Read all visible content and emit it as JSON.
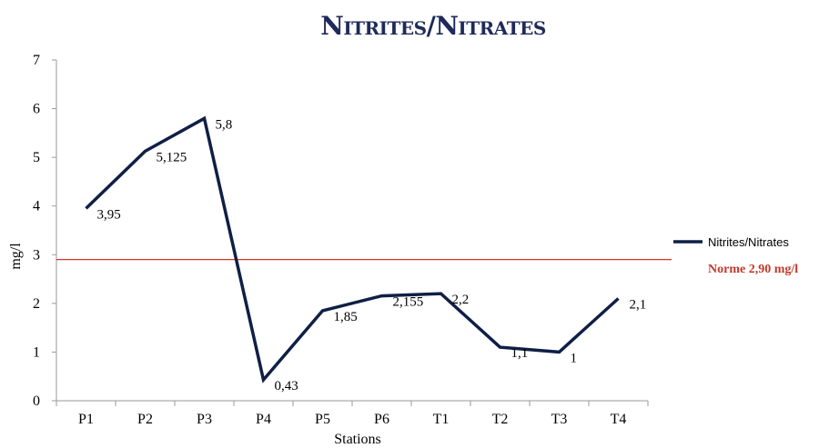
{
  "chart_data": {
    "type": "line",
    "title": "Nitrites/Nitrates",
    "xlabel": "Stations",
    "ylabel": "mg/l",
    "ylim": [
      0,
      7
    ],
    "yticks": [
      "0",
      "1",
      "2",
      "3",
      "4",
      "5",
      "6",
      "7"
    ],
    "categories": [
      "P1",
      "P2",
      "P3",
      "P4",
      "P5",
      "P6",
      "T1",
      "T2",
      "T3",
      "T4"
    ],
    "series": [
      {
        "name": "Nitrites/Nitrates",
        "color": "#0f1f45",
        "values": [
          3.95,
          5.125,
          5.8,
          0.43,
          1.85,
          2.155,
          2.2,
          1.1,
          1,
          2.1
        ],
        "labels": [
          "3,95",
          "5,125",
          "5,8",
          "0,43",
          "1,85",
          "2,155",
          "2,2",
          "1,1",
          "1",
          "2,1"
        ]
      }
    ],
    "reference_line": {
      "label": "Norme 2,90 mg/l",
      "color": "#d9352b"
    },
    "legend_position": "right",
    "grid": false
  }
}
